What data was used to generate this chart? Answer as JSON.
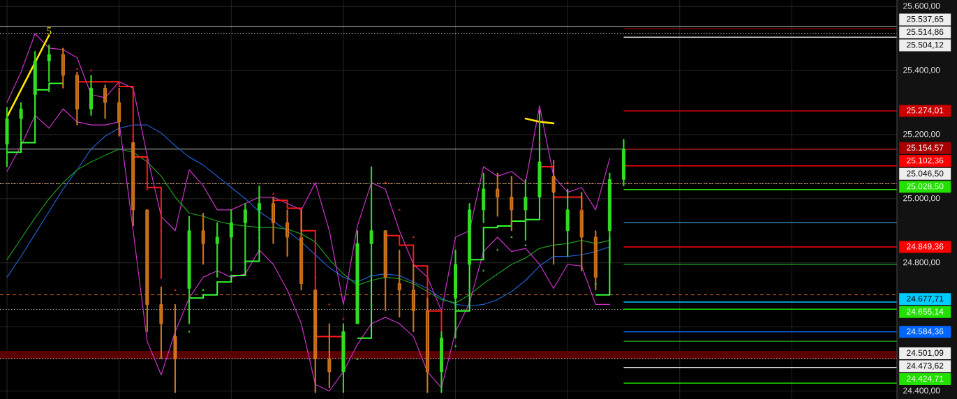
{
  "chart_data": {
    "type": "candlestick",
    "categories": [
      null,
      null,
      null,
      null,
      null,
      null,
      null,
      null,
      null,
      null,
      null,
      null,
      null,
      null,
      null,
      null,
      null,
      null,
      null,
      null,
      null,
      null,
      null,
      null,
      null,
      null,
      null,
      null,
      null,
      null,
      null,
      null,
      null,
      null,
      null,
      null,
      null,
      null,
      null,
      null,
      null,
      null,
      null,
      null,
      null,
      null,
      null,
      null,
      null,
      null,
      null,
      null,
      null,
      null,
      null,
      null,
      null,
      null,
      null,
      null,
      null,
      null,
      null,
      null
    ],
    "ohlc": [
      [
        25170,
        25285,
        25100,
        25250
      ],
      [
        25250,
        25300,
        25175,
        25280
      ],
      [
        25325,
        25460,
        25315,
        25430
      ],
      [
        25430,
        25480,
        25365,
        25450
      ],
      [
        25450,
        25470,
        25345,
        25385
      ],
      [
        25385,
        25395,
        25230,
        25280
      ],
      [
        25280,
        25385,
        25260,
        25345
      ],
      [
        25345,
        25355,
        25250,
        25300
      ],
      [
        25300,
        25345,
        25195,
        25240
      ],
      [
        25175,
        25175,
        24915,
        24965
      ],
      [
        24965,
        24965,
        24585,
        24670
      ],
      [
        24670,
        24725,
        24500,
        24610
      ],
      [
        24570,
        24670,
        24395,
        24500
      ],
      [
        24720,
        24945,
        24610,
        24900
      ],
      [
        24900,
        24955,
        24795,
        24860
      ],
      [
        24860,
        24925,
        24755,
        24880
      ],
      [
        24880,
        24965,
        24775,
        24925
      ],
      [
        24925,
        24985,
        24795,
        24965
      ],
      [
        24965,
        25040,
        24900,
        24985
      ],
      [
        24985,
        25005,
        24860,
        24925
      ],
      [
        24925,
        24965,
        24820,
        24880
      ],
      [
        24880,
        24965,
        24715,
        24735
      ],
      [
        24715,
        24715,
        24395,
        24500
      ],
      [
        24500,
        24610,
        24410,
        24460
      ],
      [
        24460,
        24610,
        24395,
        24585
      ],
      [
        24610,
        24900,
        24610,
        24860
      ],
      [
        24860,
        25100,
        24755,
        24900
      ],
      [
        24900,
        24900,
        24650,
        24755
      ],
      [
        24735,
        24840,
        24630,
        24715
      ],
      [
        24715,
        24795,
        24585,
        24650
      ],
      [
        24650,
        24690,
        24395,
        24460
      ],
      [
        24460,
        24585,
        24395,
        24565
      ],
      [
        24690,
        24840,
        24565,
        24795
      ],
      [
        24795,
        24985,
        24795,
        24965
      ],
      [
        24965,
        25080,
        24925,
        25030
      ],
      [
        25030,
        25080,
        24945,
        25005
      ],
      [
        25005,
        25070,
        24900,
        24965
      ],
      [
        24965,
        25060,
        24870,
        25005
      ],
      [
        25005,
        25275,
        24965,
        25115
      ],
      [
        25070,
        25120,
        24795,
        25020
      ],
      [
        24900,
        25030,
        24820,
        24965
      ],
      [
        24965,
        25020,
        24775,
        24880
      ],
      [
        24880,
        24900,
        24715,
        24755
      ],
      [
        24900,
        25080,
        24800,
        25060
      ],
      [
        25060,
        25185,
        25040,
        25155
      ],
      null,
      null,
      null,
      null,
      null,
      null,
      null,
      null,
      null,
      null,
      null,
      null,
      null,
      null,
      null,
      null,
      null,
      null,
      null
    ],
    "colors": [
      "#33dd22",
      "#33dd22",
      "#33dd22",
      "#33dd22",
      "#d2761e",
      "#d2761e",
      "#33dd22",
      "#d2761e",
      "#d2761e",
      "#d2761e",
      "#d2761e",
      "#d2761e",
      "#d2761e",
      "#33dd22",
      "#d2761e",
      "#33dd22",
      "#33dd22",
      "#33dd22",
      "#33dd22",
      "#d2761e",
      "#d2761e",
      "#d2761e",
      "#d2761e",
      "#d2761e",
      "#33dd22",
      "#33dd22",
      "#33dd22",
      "#d2761e",
      "#d2761e",
      "#d2761e",
      "#d2761e",
      "#33dd22",
      "#33dd22",
      "#33dd22",
      "#33dd22",
      "#d2761e",
      "#d2761e",
      "#33dd22",
      "#33dd22",
      "#d2761e",
      "#33dd22",
      "#d2761e",
      "#d2761e",
      "#33dd22",
      "#33dd22",
      null,
      null,
      null,
      null,
      null,
      null,
      null,
      null,
      null,
      null,
      null,
      null,
      null,
      null,
      null,
      null,
      null,
      null,
      null
    ],
    "series": [
      {
        "type": "line",
        "color": "#1f5fd0",
        "values": [
          24755,
          24820,
          24890,
          24960,
          25030,
          25090,
          25155,
          25195,
          25220,
          25230,
          25230,
          25205,
          25165,
          25130,
          25105,
          25070,
          25035,
          25000,
          24960,
          24930,
          24900,
          24865,
          24825,
          24785,
          24755,
          24740,
          24760,
          24765,
          24760,
          24740,
          24720,
          24690,
          24670,
          24665,
          24670,
          24685,
          24710,
          24745,
          24790,
          24820,
          24820,
          24825,
          24835,
          24850,
          null,
          null,
          null,
          null,
          null,
          null,
          null,
          null,
          null,
          null,
          null,
          null,
          null,
          null,
          null,
          null,
          null,
          null,
          null,
          null
        ]
      },
      {
        "type": "line",
        "color": "#1f9a1f",
        "values": [
          24810,
          24875,
          24940,
          25000,
          25050,
          25090,
          25115,
          25135,
          25155,
          25145,
          25115,
          25070,
          25005,
          24955,
          24945,
          24930,
          24920,
          24915,
          24910,
          24910,
          24905,
          24890,
          24865,
          24810,
          24765,
          24730,
          24745,
          24755,
          24750,
          24735,
          24710,
          24685,
          24675,
          24700,
          24735,
          24765,
          24795,
          24815,
          24845,
          24855,
          24860,
          24870,
          24860,
          24870,
          null,
          null,
          null,
          null,
          null,
          null,
          null,
          null,
          null,
          null,
          null,
          null,
          null,
          null,
          null,
          null,
          null,
          null,
          null,
          null
        ]
      },
      {
        "type": "line",
        "color": "#cc33cc",
        "values": [
          25300,
          25395,
          25515,
          25470,
          25465,
          25440,
          25325,
          25315,
          25365,
          25345,
          25135,
          24945,
          24900,
          25090,
          25040,
          24965,
          24965,
          24985,
          25005,
          25005,
          24985,
          24965,
          25050,
          24900,
          24670,
          24915,
          25050,
          25030,
          24900,
          24795,
          24755,
          24650,
          24880,
          24900,
          25100,
          25070,
          25085,
          25050,
          25290,
          25070,
          25020,
          25035,
          24965,
          25125,
          null,
          null,
          null,
          null,
          null,
          null,
          null,
          null,
          null,
          null,
          null,
          null,
          null,
          null,
          null,
          null,
          null,
          null,
          null,
          null
        ]
      },
      {
        "type": "line",
        "color": "#cc33cc",
        "values": [
          25085,
          25165,
          25260,
          25220,
          25280,
          25240,
          25230,
          25230,
          25240,
          24900,
          24555,
          24450,
          24585,
          24690,
          24755,
          24775,
          24755,
          24765,
          24840,
          24795,
          24715,
          24610,
          24420,
          24400,
          24460,
          24545,
          24610,
          24630,
          24610,
          24570,
          24460,
          24410,
          24585,
          24675,
          24835,
          24880,
          24835,
          24845,
          24795,
          24720,
          24795,
          24790,
          24670,
          24670,
          null,
          null,
          null,
          null,
          null,
          null,
          null,
          null,
          null,
          null,
          null,
          null,
          null,
          null,
          null,
          null,
          null,
          null,
          null,
          null
        ]
      },
      {
        "type": "step",
        "color": "#33ff33",
        "values": [
          25145,
          25175,
          25340,
          25360,
          25360,
          null,
          null,
          null,
          null,
          null,
          null,
          null,
          null,
          24690,
          24700,
          24740,
          24760,
          24805,
          24965,
          null,
          null,
          null,
          null,
          null,
          null,
          24565,
          24805,
          null,
          null,
          null,
          null,
          null,
          24650,
          24810,
          24910,
          24915,
          24930,
          24935,
          25195,
          null,
          null,
          null,
          24700,
          24880,
          null,
          null,
          null,
          null,
          null,
          null,
          null,
          null,
          null,
          null,
          null,
          null,
          null,
          null,
          null,
          null,
          null,
          null,
          null,
          null
        ]
      },
      {
        "type": "step",
        "color": "#ff1a1a",
        "values": [
          null,
          null,
          null,
          null,
          null,
          25365,
          25365,
          25365,
          25350,
          25130,
          25035,
          24750,
          null,
          null,
          null,
          null,
          null,
          null,
          null,
          24995,
          24970,
          24900,
          24570,
          24570,
          24570,
          null,
          null,
          24885,
          24855,
          24790,
          24650,
          24585,
          null,
          null,
          null,
          null,
          null,
          null,
          25100,
          25005,
          25005,
          24970,
          null,
          null,
          null,
          null,
          null,
          null,
          null,
          null,
          null,
          null,
          null,
          null,
          null,
          null,
          null,
          null,
          null,
          null,
          null,
          null,
          null,
          null
        ]
      },
      {
        "type": "scatter",
        "marker": "triangle",
        "color": "#33cc33",
        "values": [
          25115,
          25185,
          25280,
          25335,
          null,
          null,
          null,
          null,
          null,
          null,
          null,
          null,
          null,
          24585,
          24715,
          24740,
          24760,
          24780,
          24880,
          null,
          null,
          null,
          null,
          null,
          null,
          24500,
          24670,
          null,
          null,
          null,
          null,
          null,
          24540,
          24715,
          24775,
          24840,
          24880,
          24855,
          null,
          null,
          null,
          null,
          24735,
          24965,
          null,
          null,
          null,
          null,
          null,
          null,
          null,
          null,
          null,
          null,
          null,
          null,
          null,
          null,
          null,
          null,
          null,
          null,
          null,
          null
        ]
      },
      {
        "type": "scatter",
        "marker": "triangle",
        "color": "#dd2222",
        "values": [
          null,
          null,
          null,
          null,
          null,
          25405,
          25400,
          25365,
          25335,
          25195,
          25030,
          24900,
          24715,
          null,
          null,
          null,
          null,
          null,
          null,
          25015,
          24945,
          24880,
          24755,
          24670,
          24625,
          null,
          null,
          25050,
          24965,
          24880,
          24755,
          24650,
          null,
          null,
          null,
          null,
          null,
          null,
          25175,
          25105,
          25050,
          24965,
          null,
          null,
          null,
          null,
          null,
          null,
          null,
          null,
          null,
          null,
          null,
          null,
          null,
          null,
          null,
          null,
          null,
          null,
          null,
          null,
          null,
          null
        ]
      },
      {
        "type": "line",
        "color": "#ffe600",
        "values": [
          25255,
          25340,
          25425,
          25510,
          null,
          null,
          null,
          null,
          null,
          null,
          null,
          null,
          null,
          null,
          null,
          null,
          null,
          null,
          null,
          null,
          null,
          null,
          null,
          null,
          null,
          null,
          null,
          null,
          null,
          null,
          null,
          null,
          null,
          null,
          null,
          null,
          null,
          null,
          null,
          null,
          null,
          null,
          null,
          null,
          null,
          null,
          null,
          null,
          null,
          null,
          null,
          null,
          null,
          null,
          null,
          null,
          null,
          null,
          null,
          null,
          null,
          null,
          null,
          null
        ]
      },
      {
        "type": "line",
        "color": "#ffe600",
        "values": [
          null,
          null,
          null,
          null,
          null,
          null,
          null,
          null,
          null,
          null,
          null,
          null,
          null,
          null,
          null,
          null,
          null,
          null,
          null,
          null,
          null,
          null,
          null,
          null,
          null,
          null,
          null,
          null,
          null,
          null,
          null,
          null,
          null,
          null,
          null,
          null,
          null,
          25250,
          25240,
          25235,
          null,
          null,
          null,
          null,
          null,
          null,
          null,
          null,
          null,
          null,
          null,
          null,
          null,
          null,
          null,
          null,
          null,
          null,
          null,
          null,
          null,
          null,
          null,
          null
        ]
      }
    ],
    "ylim": [
      24375,
      25620
    ],
    "yticks": [
      {
        "value": 24400,
        "label": "24.400,00"
      },
      {
        "value": 24600,
        "label": null
      },
      {
        "value": 24800,
        "label": "24.800,00"
      },
      {
        "value": 25000,
        "label": "25.000,00"
      },
      {
        "value": 25200,
        "label": "25.200,00"
      },
      {
        "value": 25400,
        "label": "25.400,00"
      },
      {
        "value": 25600,
        "label": "25.600,00"
      }
    ],
    "grid": true,
    "bands": [
      {
        "axis": "y",
        "from": 24500,
        "to": 24525,
        "color": "#5a0000"
      }
    ],
    "ref_lines": [
      {
        "axis": "y",
        "value": 25537.65,
        "label": "25.537,65",
        "color": "#eeeeee",
        "line_style": "solid"
      },
      {
        "axis": "y",
        "value": 25530,
        "color": "#8b0000"
      },
      {
        "axis": "y",
        "value": 25514.86,
        "label": "25.514,86",
        "color": "#eeeeee",
        "line_style": "dotted"
      },
      {
        "axis": "y",
        "value": 25504.12,
        "label": "25.504,12",
        "color": "#eeeeee"
      },
      {
        "axis": "y",
        "value": 25274.01,
        "label": "25.274,01",
        "color": "#cc0000"
      },
      {
        "axis": "y",
        "value": 25154.57,
        "color": "#c8c8c8",
        "line_style": "solid"
      },
      {
        "axis": "y",
        "value": 25154.57,
        "label": "25.154,57",
        "color": "#a80000"
      },
      {
        "axis": "y",
        "value": 25102.36,
        "label": "25.102,36",
        "color": "#ff0000"
      },
      {
        "axis": "y",
        "value": 25046.5,
        "color": "#d2691e",
        "line_style": "dashed"
      },
      {
        "axis": "y",
        "value": 25046.5,
        "label": "25.046,50",
        "color": "#eeeeee",
        "line_style": "dotted"
      },
      {
        "axis": "y",
        "value": 25028.5,
        "label": "25.028,50",
        "color": "#22e000"
      },
      {
        "axis": "y",
        "value": 24925,
        "color": "#3a8fc0"
      },
      {
        "axis": "y",
        "value": 24849.36,
        "label": "24.849,36",
        "color": "#ff0000"
      },
      {
        "axis": "y",
        "value": 24795,
        "color": "#1e8c1e"
      },
      {
        "axis": "y",
        "value": 24700,
        "color": "#d2691e",
        "line_style": "dashed"
      },
      {
        "axis": "y",
        "value": 24677.71,
        "label": "24.677,71",
        "color": "#00ccff"
      },
      {
        "axis": "y",
        "value": 24655.14,
        "color": "#eeeeee",
        "line_style": "dotted"
      },
      {
        "axis": "y",
        "value": 24655.14,
        "label": "24.655,14",
        "color": "#22e000"
      },
      {
        "axis": "y",
        "value": 24584.36,
        "label": "24.584,36",
        "color": "#0066ff"
      },
      {
        "axis": "y",
        "value": 24555,
        "color": "#1e8c1e"
      },
      {
        "axis": "y",
        "value": 24501.09,
        "label": "24.501,09",
        "color": "#eeeeee",
        "line_style": "dotted"
      },
      {
        "axis": "y",
        "value": 24473.62,
        "label": "24.473,62",
        "color": "#eeeeee"
      },
      {
        "axis": "y",
        "value": 24424.71,
        "label": "24.424,71",
        "color": "#22e000"
      }
    ],
    "annotations": [
      {
        "text": "5",
        "y": 25510
      }
    ]
  }
}
